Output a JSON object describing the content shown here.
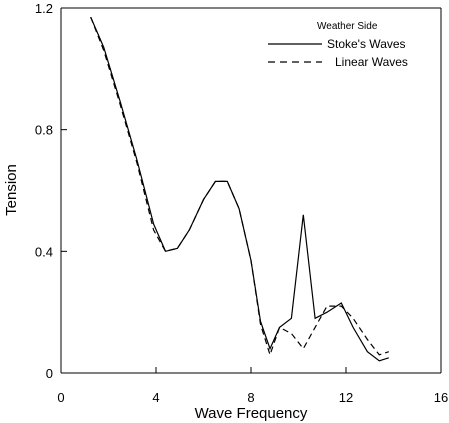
{
  "chart_data": {
    "type": "line",
    "xlabel": "Wave Frequency",
    "ylabel": "Tension",
    "xlim": [
      0,
      16
    ],
    "ylim": [
      0,
      1.2
    ],
    "x_ticks": [
      "0",
      "4",
      "8",
      "12",
      "16"
    ],
    "y_ticks": [
      "0",
      "0.4",
      "0.8",
      "1.2"
    ],
    "legend": {
      "title": "Weather Side",
      "placement": "top-right"
    },
    "grid": false,
    "series": [
      {
        "name": "Stoke's Waves",
        "style": "solid",
        "points": [
          [
            1.25,
            1.17
          ],
          [
            1.8,
            1.07
          ],
          [
            2.5,
            0.89
          ],
          [
            3.2,
            0.7
          ],
          [
            3.9,
            0.49
          ],
          [
            4.4,
            0.4
          ],
          [
            4.9,
            0.41
          ],
          [
            5.4,
            0.47
          ],
          [
            6.0,
            0.57
          ],
          [
            6.5,
            0.63
          ],
          [
            7.0,
            0.63
          ],
          [
            7.5,
            0.54
          ],
          [
            8.0,
            0.37
          ],
          [
            8.4,
            0.17
          ],
          [
            8.8,
            0.08
          ],
          [
            9.2,
            0.15
          ],
          [
            9.7,
            0.18
          ],
          [
            10.2,
            0.52
          ],
          [
            10.7,
            0.18
          ],
          [
            11.2,
            0.2
          ],
          [
            11.8,
            0.23
          ],
          [
            12.3,
            0.15
          ],
          [
            12.9,
            0.07
          ],
          [
            13.4,
            0.04
          ],
          [
            13.8,
            0.05
          ]
        ]
      },
      {
        "name": "Linear Waves",
        "style": "dashed",
        "points": [
          [
            1.25,
            1.17
          ],
          [
            1.8,
            1.06
          ],
          [
            2.5,
            0.88
          ],
          [
            3.2,
            0.69
          ],
          [
            3.9,
            0.47
          ],
          [
            4.4,
            0.4
          ],
          [
            4.9,
            0.41
          ],
          [
            5.4,
            0.47
          ],
          [
            6.0,
            0.57
          ],
          [
            6.5,
            0.63
          ],
          [
            7.0,
            0.63
          ],
          [
            7.5,
            0.54
          ],
          [
            8.0,
            0.37
          ],
          [
            8.4,
            0.16
          ],
          [
            8.8,
            0.06
          ],
          [
            9.2,
            0.15
          ],
          [
            9.7,
            0.13
          ],
          [
            10.2,
            0.08
          ],
          [
            10.7,
            0.15
          ],
          [
            11.2,
            0.22
          ],
          [
            11.8,
            0.22
          ],
          [
            12.3,
            0.18
          ],
          [
            12.9,
            0.11
          ],
          [
            13.4,
            0.06
          ],
          [
            13.8,
            0.07
          ]
        ]
      }
    ]
  }
}
